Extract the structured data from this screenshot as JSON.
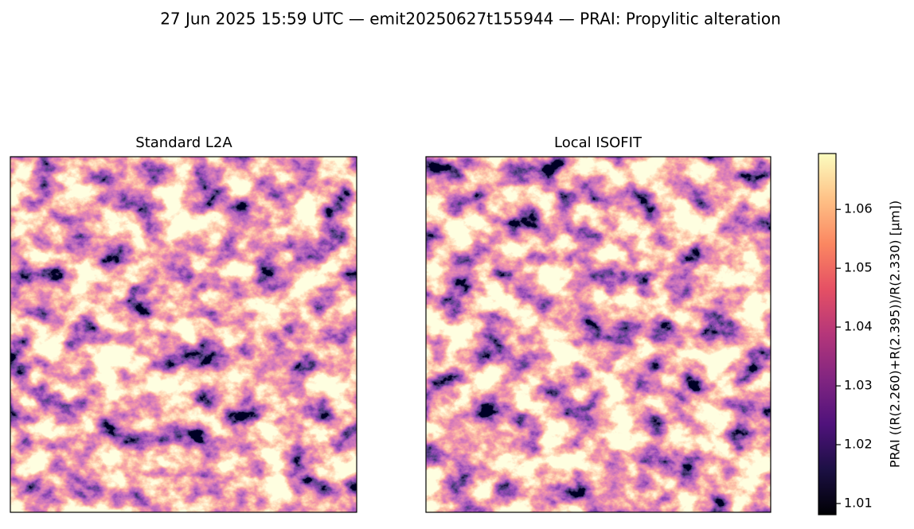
{
  "chart_data": {
    "type": "image-comparison",
    "title": "27 Jun 2025 15:59 UTC — emit20250627t155944 — PRAI: Propylitic alteration",
    "panels": [
      {
        "title": "Standard L2A"
      },
      {
        "title": "Local ISOFIT"
      }
    ],
    "colorbar": {
      "label": "PRAI  ((R(2.260)+R(2.395))/R(2.330)  [µm])",
      "colormap": "magma",
      "colors": [
        "#000004",
        "#1c1044",
        "#4f127b",
        "#812581",
        "#b5367a",
        "#e55064",
        "#fb8761",
        "#fec287",
        "#fcfdbf"
      ],
      "ylim": [
        1.0081,
        1.0695
      ],
      "yticks": [
        1.01,
        1.02,
        1.03,
        1.04,
        1.05,
        1.06
      ]
    }
  }
}
